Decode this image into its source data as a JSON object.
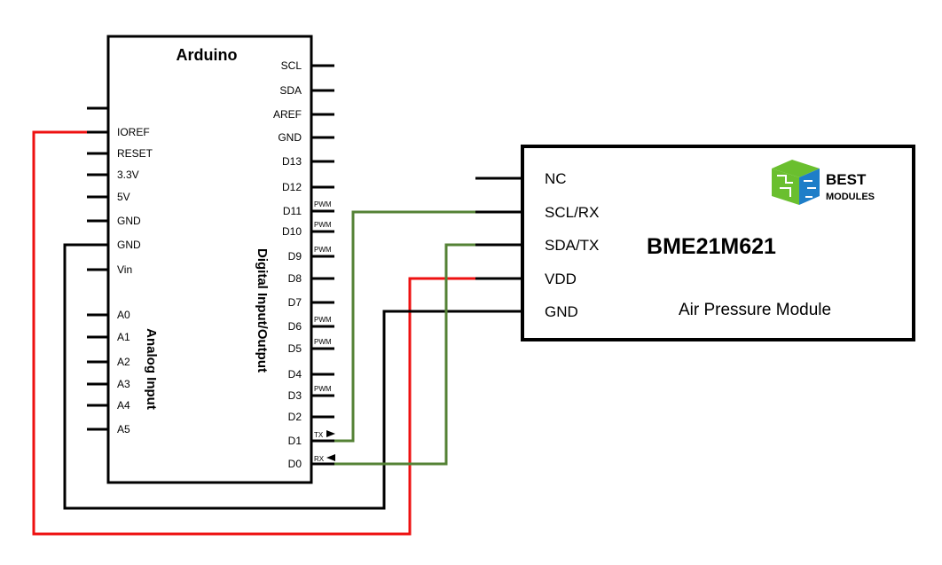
{
  "arduino": {
    "title": "Arduino",
    "left_pins": [
      "IOREF",
      "RESET",
      "3.3V",
      "5V",
      "GND",
      "GND",
      "Vin"
    ],
    "analog_pins": [
      "A0",
      "A1",
      "A2",
      "A3",
      "A4",
      "A5"
    ],
    "analog_label": "Analog Input",
    "digital_label": "Digital Input/Output",
    "right_pins": [
      "SCL",
      "SDA",
      "AREF",
      "GND",
      "D13",
      "D12",
      "D11",
      "D10",
      "D9",
      "D8",
      "D7",
      "D6",
      "D5",
      "D4",
      "D3",
      "D2",
      "D1",
      "D0"
    ],
    "pwm_tag": "PWM",
    "tx_tag": "TX",
    "rx_tag": "RX"
  },
  "module": {
    "pins": [
      "NC",
      "SCL/RX",
      "SDA/TX",
      "VDD",
      "GND"
    ],
    "name": "BME21M621",
    "description": "Air Pressure Module",
    "logo_top": "BEST",
    "logo_bottom": "MODULES"
  },
  "colors": {
    "outline": "#000000",
    "wire_power": "#ee1111",
    "wire_ground": "#000000",
    "wire_signal": "#548235",
    "logo_green": "#6abf2e",
    "logo_blue": "#1e7ec8"
  },
  "connections": [
    {
      "from": "IOREF",
      "to": "VDD",
      "color_role": "wire_power"
    },
    {
      "from": "GND",
      "to": "GND",
      "color_role": "wire_ground"
    },
    {
      "from": "D1",
      "to": "SCL/RX",
      "color_role": "wire_signal"
    },
    {
      "from": "D0",
      "to": "SDA/TX",
      "color_role": "wire_signal"
    }
  ]
}
